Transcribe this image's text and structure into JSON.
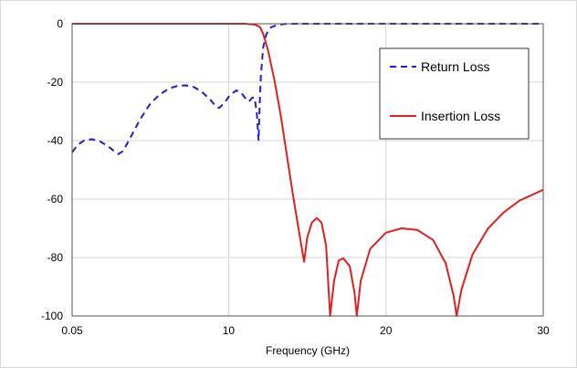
{
  "chart_data": {
    "type": "line",
    "xlabel": "Frequency (GHz)",
    "ylabel": "",
    "xlim": [
      0.05,
      30
    ],
    "ylim": [
      -100,
      0
    ],
    "xticks": [
      {
        "value": 0.05,
        "label": "0.05"
      },
      {
        "value": 10,
        "label": "10"
      },
      {
        "value": 20,
        "label": "20"
      },
      {
        "value": 30,
        "label": "30"
      }
    ],
    "yticks": [
      {
        "value": 0,
        "label": "0"
      },
      {
        "value": -20,
        "label": "-20"
      },
      {
        "value": -40,
        "label": "-40"
      },
      {
        "value": -60,
        "label": "-60"
      },
      {
        "value": -80,
        "label": "-80"
      },
      {
        "value": -100,
        "label": "-100"
      }
    ],
    "grid": true,
    "legend_position": "top-right",
    "series": [
      {
        "name": "Return Loss",
        "color": "#1f1fd0",
        "dash": "dashed",
        "points": [
          [
            0.05,
            -44
          ],
          [
            0.4,
            -41.5
          ],
          [
            0.8,
            -40
          ],
          [
            1.3,
            -39.5
          ],
          [
            1.8,
            -40.2
          ],
          [
            2.3,
            -41.8
          ],
          [
            2.7,
            -43.5
          ],
          [
            3.0,
            -44.6
          ],
          [
            3.3,
            -43.5
          ],
          [
            3.8,
            -38.5
          ],
          [
            4.4,
            -32.5
          ],
          [
            5.0,
            -27.5
          ],
          [
            5.6,
            -24.3
          ],
          [
            6.2,
            -22.2
          ],
          [
            6.8,
            -21.2
          ],
          [
            7.3,
            -21.1
          ],
          [
            7.8,
            -21.7
          ],
          [
            8.3,
            -23.3
          ],
          [
            8.8,
            -25.8
          ],
          [
            9.2,
            -28.3
          ],
          [
            9.4,
            -28.8
          ],
          [
            9.7,
            -27.3
          ],
          [
            10.1,
            -24.3
          ],
          [
            10.5,
            -22.8
          ],
          [
            10.8,
            -23.6
          ],
          [
            11.1,
            -25.8
          ],
          [
            11.3,
            -26.6
          ],
          [
            11.5,
            -25.3
          ],
          [
            11.65,
            -25.3
          ],
          [
            11.8,
            -31
          ],
          [
            11.9,
            -40
          ],
          [
            11.97,
            -28
          ],
          [
            12.05,
            -18
          ],
          [
            12.2,
            -8
          ],
          [
            12.4,
            -3.5
          ],
          [
            12.7,
            -1.2
          ],
          [
            13.1,
            -0.4
          ],
          [
            13.6,
            -0.1
          ],
          [
            14.5,
            0
          ],
          [
            20,
            0
          ],
          [
            30,
            0
          ]
        ]
      },
      {
        "name": "Insertion Loss",
        "color": "#e01f1f",
        "dash": "solid",
        "points": [
          [
            0.05,
            0
          ],
          [
            9.0,
            0
          ],
          [
            11.0,
            0
          ],
          [
            11.7,
            -0.3
          ],
          [
            12.0,
            -1.2
          ],
          [
            12.2,
            -3.5
          ],
          [
            12.5,
            -9
          ],
          [
            12.9,
            -19
          ],
          [
            13.3,
            -31
          ],
          [
            13.7,
            -45
          ],
          [
            14.1,
            -59
          ],
          [
            14.5,
            -72
          ],
          [
            14.8,
            -81.5
          ],
          [
            15.0,
            -73
          ],
          [
            15.3,
            -68
          ],
          [
            15.6,
            -66.5
          ],
          [
            15.9,
            -68
          ],
          [
            16.2,
            -76
          ],
          [
            16.45,
            -100
          ],
          [
            16.7,
            -88
          ],
          [
            17.0,
            -81
          ],
          [
            17.3,
            -80.3
          ],
          [
            17.7,
            -83
          ],
          [
            18.0,
            -92
          ],
          [
            18.15,
            -100
          ],
          [
            18.4,
            -88
          ],
          [
            19.0,
            -77
          ],
          [
            20.0,
            -71.5
          ],
          [
            21.0,
            -70
          ],
          [
            22.0,
            -70.6
          ],
          [
            23.0,
            -74
          ],
          [
            23.8,
            -82
          ],
          [
            24.3,
            -93
          ],
          [
            24.5,
            -100
          ],
          [
            24.8,
            -91
          ],
          [
            25.5,
            -79
          ],
          [
            26.5,
            -70
          ],
          [
            27.5,
            -64.5
          ],
          [
            28.5,
            -60.5
          ],
          [
            30.0,
            -56.8
          ]
        ]
      }
    ]
  }
}
